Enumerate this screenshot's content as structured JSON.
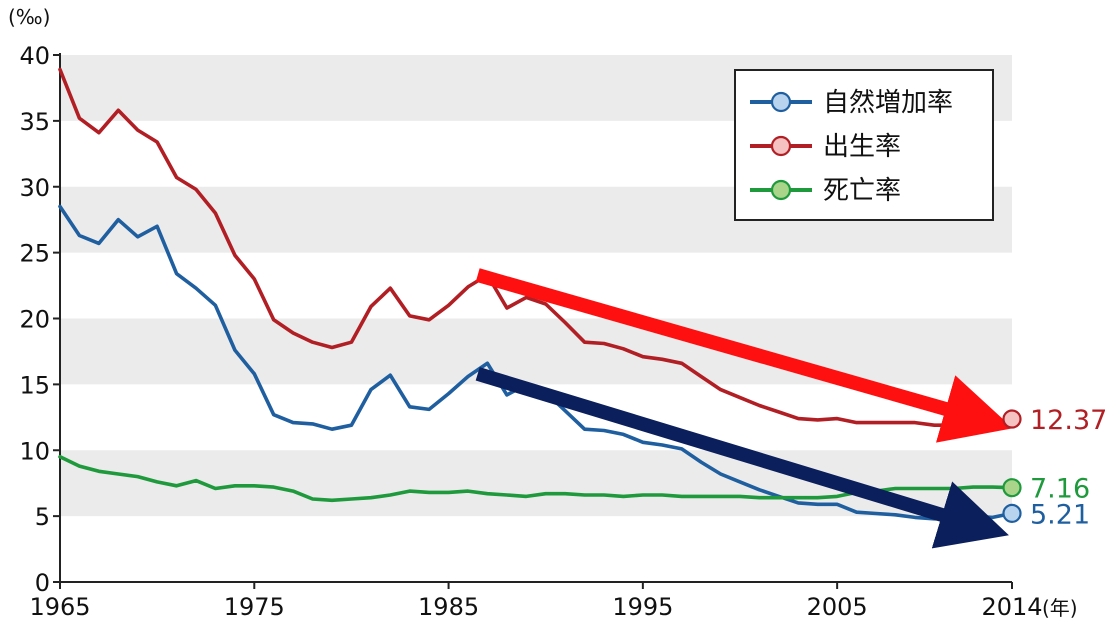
{
  "chart_data": {
    "type": "line",
    "y_unit": "(‰)",
    "x_unit": "(年)",
    "ylim": [
      0,
      40
    ],
    "yticks": [
      0,
      5,
      10,
      15,
      20,
      25,
      30,
      35,
      40
    ],
    "xlim": [
      1965,
      2014
    ],
    "xticks": [
      1965,
      1975,
      1985,
      1995,
      2005,
      2014
    ],
    "background_bands": true,
    "legend_position": "top-right",
    "series": [
      {
        "name": "自然増加率",
        "color": "#1f5fa0",
        "marker_fill": "#b8d3ee",
        "end_label": "5.21",
        "x": [
          1965,
          1966,
          1967,
          1968,
          1969,
          1970,
          1971,
          1972,
          1973,
          1974,
          1975,
          1976,
          1977,
          1978,
          1979,
          1980,
          1981,
          1982,
          1983,
          1984,
          1985,
          1986,
          1987,
          1988,
          1989,
          1990,
          1991,
          1992,
          1993,
          1994,
          1995,
          1996,
          1997,
          1998,
          1999,
          2000,
          2001,
          2002,
          2003,
          2004,
          2005,
          2006,
          2007,
          2008,
          2009,
          2010,
          2011,
          2012,
          2013,
          2014
        ],
        "values": [
          28.5,
          26.3,
          25.7,
          27.5,
          26.2,
          27.0,
          23.4,
          22.3,
          21.0,
          17.6,
          15.8,
          12.7,
          12.1,
          12.0,
          11.6,
          11.9,
          14.6,
          15.7,
          13.3,
          13.1,
          14.3,
          15.6,
          16.6,
          14.2,
          15.0,
          14.4,
          13.0,
          11.6,
          11.5,
          11.2,
          10.6,
          10.4,
          10.1,
          9.1,
          8.2,
          7.6,
          7.0,
          6.5,
          6.0,
          5.9,
          5.9,
          5.3,
          5.2,
          5.1,
          4.9,
          4.8,
          4.8,
          5.0,
          4.9,
          5.21
        ]
      },
      {
        "name": "出生率",
        "color": "#b11f24",
        "marker_fill": "#f6c1c1",
        "end_label": "12.37",
        "x": [
          1965,
          1966,
          1967,
          1968,
          1969,
          1970,
          1971,
          1972,
          1973,
          1974,
          1975,
          1976,
          1977,
          1978,
          1979,
          1980,
          1981,
          1982,
          1983,
          1984,
          1985,
          1986,
          1987,
          1988,
          1989,
          1990,
          1991,
          1992,
          1993,
          1994,
          1995,
          1996,
          1997,
          1998,
          1999,
          2000,
          2001,
          2002,
          2003,
          2004,
          2005,
          2006,
          2007,
          2008,
          2009,
          2010,
          2011,
          2012,
          2013,
          2014
        ],
        "values": [
          38.9,
          35.2,
          34.1,
          35.8,
          34.3,
          33.4,
          30.7,
          29.8,
          28.0,
          24.8,
          23.0,
          19.9,
          18.9,
          18.2,
          17.8,
          18.2,
          20.9,
          22.3,
          20.2,
          19.9,
          21.0,
          22.4,
          23.3,
          20.8,
          21.6,
          21.1,
          19.7,
          18.2,
          18.1,
          17.7,
          17.1,
          16.9,
          16.6,
          15.6,
          14.6,
          14.0,
          13.4,
          12.9,
          12.4,
          12.3,
          12.4,
          12.1,
          12.1,
          12.1,
          12.1,
          11.9,
          11.9,
          12.1,
          12.1,
          12.37
        ]
      },
      {
        "name": "死亡率",
        "color": "#1e9a3c",
        "marker_fill": "#a9d48a",
        "end_label": "7.16",
        "x": [
          1965,
          1966,
          1967,
          1968,
          1969,
          1970,
          1971,
          1972,
          1973,
          1974,
          1975,
          1976,
          1977,
          1978,
          1979,
          1980,
          1981,
          1982,
          1983,
          1984,
          1985,
          1986,
          1987,
          1988,
          1989,
          1990,
          1991,
          1992,
          1993,
          1994,
          1995,
          1996,
          1997,
          1998,
          1999,
          2000,
          2001,
          2002,
          2003,
          2004,
          2005,
          2006,
          2007,
          2008,
          2009,
          2010,
          2011,
          2012,
          2013,
          2014
        ],
        "values": [
          9.5,
          8.8,
          8.4,
          8.2,
          8.0,
          7.6,
          7.3,
          7.7,
          7.1,
          7.3,
          7.3,
          7.2,
          6.9,
          6.3,
          6.2,
          6.3,
          6.4,
          6.6,
          6.9,
          6.8,
          6.8,
          6.9,
          6.7,
          6.6,
          6.5,
          6.7,
          6.7,
          6.6,
          6.6,
          6.5,
          6.6,
          6.6,
          6.5,
          6.5,
          6.5,
          6.5,
          6.4,
          6.4,
          6.4,
          6.4,
          6.5,
          6.8,
          6.9,
          7.1,
          7.1,
          7.1,
          7.1,
          7.2,
          7.2,
          7.16
        ]
      }
    ],
    "annotations": [
      {
        "type": "arrow",
        "color": "#ff1010",
        "from": [
          1986.5,
          23.3
        ],
        "to": [
          2012.8,
          12.2
        ]
      },
      {
        "type": "arrow",
        "color": "#0a1f5c",
        "from": [
          1986.5,
          15.8
        ],
        "to": [
          2012.6,
          4.1
        ]
      }
    ]
  }
}
